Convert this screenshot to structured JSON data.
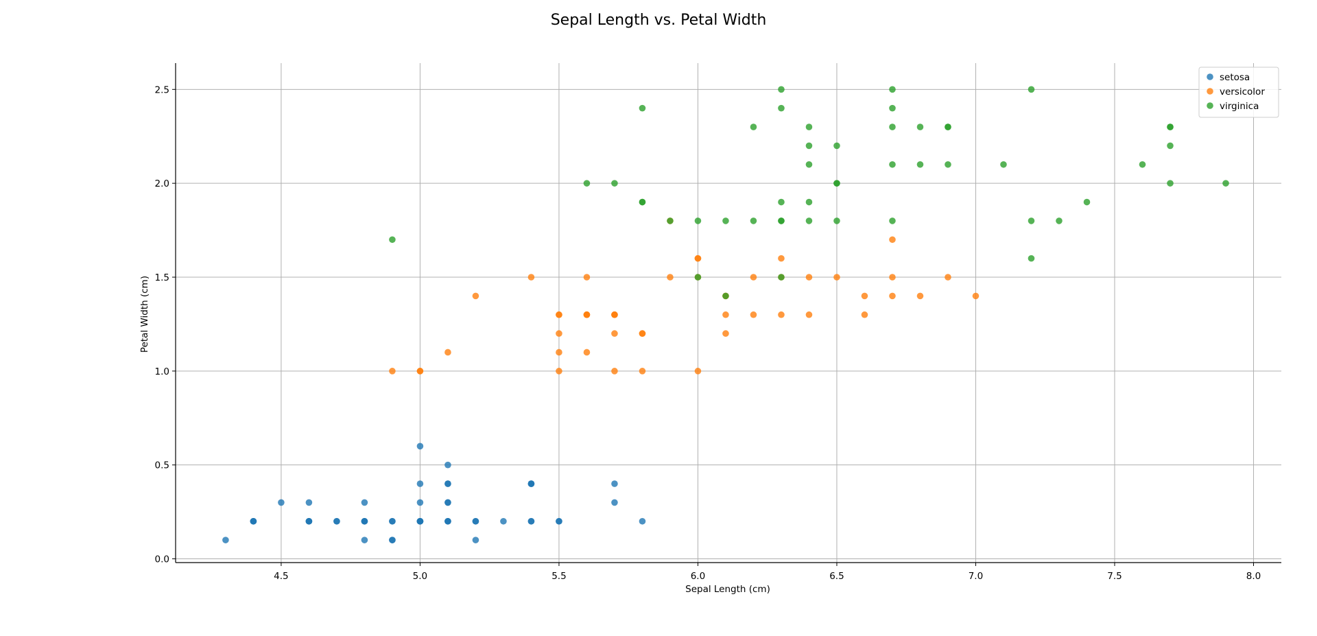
{
  "chart_data": {
    "type": "scatter",
    "title": "Sepal Length vs. Petal Width",
    "xlabel": "Sepal Length (cm)",
    "ylabel": "Petal Width (cm)",
    "xlim": [
      4.12,
      8.1
    ],
    "ylim": [
      -0.02,
      2.64
    ],
    "xticks": [
      4.5,
      5.0,
      5.5,
      6.0,
      6.5,
      7.0,
      7.5,
      8.0
    ],
    "xtick_labels": [
      "4.5",
      "5.0",
      "5.5",
      "6.0",
      "6.5",
      "7.0",
      "7.5",
      "8.0"
    ],
    "yticks": [
      0.0,
      0.5,
      1.0,
      1.5,
      2.0,
      2.5
    ],
    "ytick_labels": [
      "0.0",
      "0.5",
      "1.0",
      "1.5",
      "2.0",
      "2.5"
    ],
    "grid": true,
    "legend_position": "top-right",
    "series": [
      {
        "name": "setosa",
        "color": "#1f77b4",
        "points": [
          [
            5.1,
            0.2
          ],
          [
            4.9,
            0.2
          ],
          [
            4.7,
            0.2
          ],
          [
            4.6,
            0.2
          ],
          [
            5.0,
            0.2
          ],
          [
            5.4,
            0.4
          ],
          [
            4.6,
            0.3
          ],
          [
            5.0,
            0.2
          ],
          [
            4.4,
            0.2
          ],
          [
            4.9,
            0.1
          ],
          [
            5.4,
            0.2
          ],
          [
            4.8,
            0.2
          ],
          [
            4.8,
            0.1
          ],
          [
            4.3,
            0.1
          ],
          [
            5.8,
            0.2
          ],
          [
            5.7,
            0.4
          ],
          [
            5.4,
            0.4
          ],
          [
            5.1,
            0.3
          ],
          [
            5.7,
            0.3
          ],
          [
            5.1,
            0.3
          ],
          [
            5.4,
            0.2
          ],
          [
            5.1,
            0.4
          ],
          [
            4.6,
            0.2
          ],
          [
            5.1,
            0.5
          ],
          [
            4.8,
            0.2
          ],
          [
            5.0,
            0.2
          ],
          [
            5.0,
            0.4
          ],
          [
            5.2,
            0.2
          ],
          [
            5.2,
            0.2
          ],
          [
            4.7,
            0.2
          ],
          [
            4.8,
            0.2
          ],
          [
            5.4,
            0.4
          ],
          [
            5.2,
            0.1
          ],
          [
            5.5,
            0.2
          ],
          [
            4.9,
            0.2
          ],
          [
            5.0,
            0.2
          ],
          [
            5.5,
            0.2
          ],
          [
            4.9,
            0.1
          ],
          [
            4.4,
            0.2
          ],
          [
            5.1,
            0.2
          ],
          [
            5.0,
            0.3
          ],
          [
            4.5,
            0.3
          ],
          [
            4.4,
            0.2
          ],
          [
            5.0,
            0.6
          ],
          [
            5.1,
            0.4
          ],
          [
            4.8,
            0.3
          ],
          [
            5.1,
            0.2
          ],
          [
            4.6,
            0.2
          ],
          [
            5.3,
            0.2
          ],
          [
            5.0,
            0.2
          ]
        ]
      },
      {
        "name": "versicolor",
        "color": "#ff7f0e",
        "points": [
          [
            7.0,
            1.4
          ],
          [
            6.4,
            1.5
          ],
          [
            6.9,
            1.5
          ],
          [
            5.5,
            1.3
          ],
          [
            6.5,
            1.5
          ],
          [
            5.7,
            1.3
          ],
          [
            6.3,
            1.6
          ],
          [
            4.9,
            1.0
          ],
          [
            6.6,
            1.3
          ],
          [
            5.2,
            1.4
          ],
          [
            5.0,
            1.0
          ],
          [
            5.9,
            1.5
          ],
          [
            6.0,
            1.0
          ],
          [
            6.1,
            1.4
          ],
          [
            5.6,
            1.3
          ],
          [
            6.7,
            1.4
          ],
          [
            5.6,
            1.5
          ],
          [
            5.8,
            1.0
          ],
          [
            6.2,
            1.5
          ],
          [
            5.6,
            1.1
          ],
          [
            5.9,
            1.8
          ],
          [
            6.1,
            1.3
          ],
          [
            6.3,
            1.5
          ],
          [
            6.1,
            1.2
          ],
          [
            6.4,
            1.3
          ],
          [
            6.6,
            1.4
          ],
          [
            6.8,
            1.4
          ],
          [
            6.7,
            1.7
          ],
          [
            6.0,
            1.5
          ],
          [
            5.7,
            1.0
          ],
          [
            5.5,
            1.1
          ],
          [
            5.5,
            1.0
          ],
          [
            5.8,
            1.2
          ],
          [
            6.0,
            1.6
          ],
          [
            5.4,
            1.5
          ],
          [
            6.0,
            1.6
          ],
          [
            6.7,
            1.5
          ],
          [
            6.3,
            1.3
          ],
          [
            5.6,
            1.3
          ],
          [
            5.5,
            1.3
          ],
          [
            5.5,
            1.2
          ],
          [
            6.1,
            1.4
          ],
          [
            5.8,
            1.2
          ],
          [
            5.0,
            1.0
          ],
          [
            5.6,
            1.3
          ],
          [
            5.7,
            1.2
          ],
          [
            5.7,
            1.3
          ],
          [
            6.2,
            1.3
          ],
          [
            5.1,
            1.1
          ],
          [
            5.7,
            1.3
          ]
        ]
      },
      {
        "name": "virginica",
        "color": "#2ca02c",
        "points": [
          [
            6.3,
            2.5
          ],
          [
            5.8,
            1.9
          ],
          [
            7.1,
            2.1
          ],
          [
            6.3,
            1.8
          ],
          [
            6.5,
            2.2
          ],
          [
            7.6,
            2.1
          ],
          [
            4.9,
            1.7
          ],
          [
            7.3,
            1.8
          ],
          [
            6.7,
            1.8
          ],
          [
            7.2,
            2.5
          ],
          [
            6.5,
            2.0
          ],
          [
            6.4,
            1.9
          ],
          [
            6.8,
            2.1
          ],
          [
            5.7,
            2.0
          ],
          [
            5.8,
            2.4
          ],
          [
            6.4,
            2.3
          ],
          [
            6.5,
            1.8
          ],
          [
            7.7,
            2.2
          ],
          [
            7.7,
            2.3
          ],
          [
            6.0,
            1.5
          ],
          [
            6.9,
            2.3
          ],
          [
            5.6,
            2.0
          ],
          [
            7.7,
            2.0
          ],
          [
            6.3,
            1.8
          ],
          [
            6.7,
            2.1
          ],
          [
            7.2,
            1.8
          ],
          [
            6.2,
            1.8
          ],
          [
            6.1,
            1.8
          ],
          [
            6.4,
            2.1
          ],
          [
            7.2,
            1.6
          ],
          [
            7.4,
            1.9
          ],
          [
            7.9,
            2.0
          ],
          [
            6.4,
            2.2
          ],
          [
            6.3,
            1.5
          ],
          [
            6.1,
            1.4
          ],
          [
            7.7,
            2.3
          ],
          [
            6.3,
            2.4
          ],
          [
            6.4,
            1.8
          ],
          [
            6.0,
            1.8
          ],
          [
            6.9,
            2.1
          ],
          [
            6.7,
            2.4
          ],
          [
            6.9,
            2.3
          ],
          [
            5.8,
            1.9
          ],
          [
            6.8,
            2.3
          ],
          [
            6.7,
            2.5
          ],
          [
            6.7,
            2.3
          ],
          [
            6.3,
            1.9
          ],
          [
            6.5,
            2.0
          ],
          [
            6.2,
            2.3
          ],
          [
            5.9,
            1.8
          ]
        ]
      }
    ]
  }
}
